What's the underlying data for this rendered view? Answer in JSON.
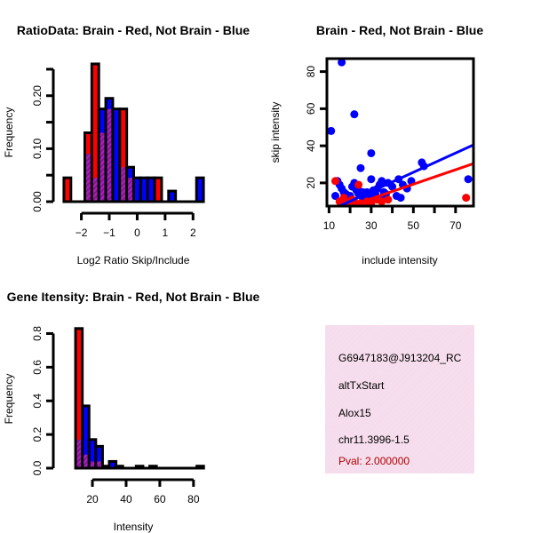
{
  "colors": {
    "red": "#ff0000",
    "blue": "#0000ff",
    "overlap": "#9a1fb0",
    "pval": "#b00000",
    "info_bg": "#f9dcef"
  },
  "chart_data": [
    {
      "type": "bar",
      "title": "RatioData: Brain - Red, Not Brain - Blue",
      "xlabel": "Log2 Ratio Skip/Include",
      "ylabel": "Frequency",
      "xlim": [
        -2.75,
        2.5
      ],
      "ylim": [
        0,
        0.27
      ],
      "xticks": [
        -2,
        -1,
        0,
        1,
        2
      ],
      "yticks": [
        0,
        0.05,
        0.1,
        0.15,
        0.2,
        0.25
      ],
      "ytick_labels": [
        "0.00",
        "",
        "0.10",
        "",
        "0.20",
        ""
      ],
      "bin_start": -2.625,
      "bin_width": 0.25,
      "series": [
        {
          "name": "Brain",
          "color": "red",
          "values": [
            0.045,
            0,
            0,
            0.13,
            0.26,
            0.13,
            0.175,
            0,
            0.175,
            0.045,
            0,
            0,
            0,
            0.045,
            0,
            0,
            0,
            0,
            0,
            0
          ]
        },
        {
          "name": "Not Brain",
          "color": "blue",
          "values": [
            0,
            0,
            0,
            0.09,
            0.045,
            0.175,
            0.195,
            0.175,
            0.065,
            0.065,
            0.045,
            0.045,
            0.045,
            0,
            0,
            0.02,
            0,
            0,
            0,
            0.045
          ]
        }
      ]
    },
    {
      "type": "scatter",
      "title": "Brain - Red, Not Brain - Blue",
      "xlabel": "include intensity",
      "ylabel": "skip intensity",
      "xlim": [
        9,
        78.5
      ],
      "ylim": [
        7.5,
        87
      ],
      "xticks": [
        10,
        20,
        30,
        40,
        50,
        60,
        70
      ],
      "xtick_labels": [
        "10",
        "",
        "30",
        "",
        "50",
        "",
        "70"
      ],
      "yticks": [
        20,
        40,
        60,
        80
      ],
      "series": [
        {
          "name": "Not Brain",
          "color": "blue",
          "points": [
            [
              11,
              48
            ],
            [
              16,
              85
            ],
            [
              22,
              57
            ],
            [
              30,
              36
            ],
            [
              25,
              28
            ],
            [
              54,
              31
            ],
            [
              55,
              29
            ],
            [
              76,
              22
            ],
            [
              14,
              21
            ],
            [
              15,
              19
            ],
            [
              13,
              13
            ],
            [
              17,
              15
            ],
            [
              18,
              14
            ],
            [
              20,
              13
            ],
            [
              21,
              18
            ],
            [
              22,
              20
            ],
            [
              23,
              16
            ],
            [
              24,
              14
            ],
            [
              26,
              15
            ],
            [
              27,
              14
            ],
            [
              28,
              15
            ],
            [
              29,
              13
            ],
            [
              30,
              22
            ],
            [
              31,
              16
            ],
            [
              32,
              14
            ],
            [
              33,
              17
            ],
            [
              34,
              19
            ],
            [
              35,
              21
            ],
            [
              36,
              15
            ],
            [
              37,
              14
            ],
            [
              38,
              20
            ],
            [
              40,
              18
            ],
            [
              42,
              13
            ],
            [
              43,
              22
            ],
            [
              44,
              12
            ],
            [
              45,
              19
            ],
            [
              47,
              17
            ],
            [
              49,
              21
            ],
            [
              35,
              11
            ],
            [
              19,
              11
            ],
            [
              26,
              12
            ],
            [
              31,
              12
            ],
            [
              16,
              17
            ],
            [
              24,
              16
            ]
          ],
          "fit": {
            "slope": 0.52,
            "intercept": -0.3
          }
        },
        {
          "name": "Brain",
          "color": "red",
          "points": [
            [
              13,
              21
            ],
            [
              75,
              12
            ],
            [
              15,
              10
            ],
            [
              17,
              12
            ],
            [
              20,
              9
            ],
            [
              22,
              10
            ],
            [
              25,
              9
            ],
            [
              28,
              10
            ],
            [
              30,
              9
            ],
            [
              33,
              11
            ],
            [
              35,
              10
            ],
            [
              38,
              11
            ],
            [
              18,
              10
            ],
            [
              24,
              19
            ],
            [
              21,
              11
            ]
          ],
          "fit": {
            "slope": 0.39,
            "intercept": -0.2
          }
        }
      ]
    },
    {
      "type": "bar",
      "title": "Gene Itensity: Brain - Red, Not Brain - Blue",
      "xlabel": "Intensity",
      "ylabel": "Frequency",
      "xlim": [
        1,
        88
      ],
      "ylim": [
        0,
        0.85
      ],
      "xticks": [
        20,
        40,
        60,
        80
      ],
      "yticks": [
        0,
        0.2,
        0.4,
        0.6,
        0.8
      ],
      "ytick_labels": [
        "0.0",
        "0.2",
        "0.4",
        "0.6",
        "0.8"
      ],
      "bin_start": 10,
      "bin_width": 4,
      "series": [
        {
          "name": "Brain",
          "color": "red",
          "values": [
            0.83,
            0.08,
            0.04,
            0.04,
            0,
            0,
            0,
            0,
            0,
            0,
            0,
            0,
            0,
            0,
            0,
            0,
            0,
            0,
            0
          ]
        },
        {
          "name": "Not Brain",
          "color": "blue",
          "values": [
            0.17,
            0.37,
            0.17,
            0.13,
            0.012,
            0.04,
            0.012,
            0,
            0,
            0.012,
            0,
            0.012,
            0,
            0,
            0,
            0,
            0,
            0,
            0.012
          ]
        }
      ]
    }
  ],
  "info": {
    "id": "G6947183@J913204_RC",
    "event": "altTxStart",
    "gene": "Alox15",
    "location": "chr11.3996-1.5",
    "pval": "Pval: 2.000000"
  }
}
